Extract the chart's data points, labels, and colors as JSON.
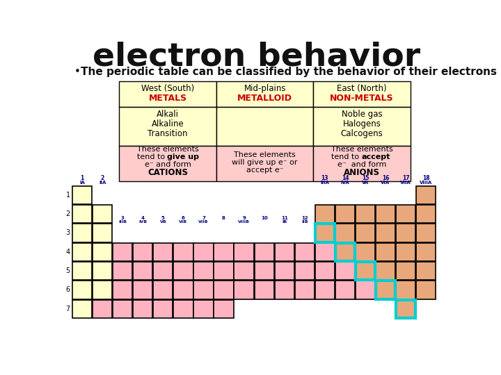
{
  "title": "electron behavior",
  "subtitle": "The periodic table can be classified by the behavior of their electrons",
  "bg_color": "#ffffff",
  "title_fontsize": 34,
  "subtitle_fontsize": 11,
  "table_header_bg": "#ffffcc",
  "table_bottom_bg": "#ffcccc",
  "col1_header": [
    "West (South)",
    "METALS"
  ],
  "col2_header": [
    "Mid-plains",
    "METALLOID"
  ],
  "col3_header": [
    "East (North)",
    "NON-METALS"
  ],
  "col1_items": [
    "Alkali",
    "Alkaline",
    "Transition"
  ],
  "col3_items": [
    "Noble gas",
    "Halogens",
    "Calcogens"
  ],
  "col1_bottom_plain1": "These elements",
  "col1_bottom_plain2": "tend to ",
  "col1_bottom_bold2": "give up",
  "col1_bottom_plain3": "e⁻ and form",
  "col1_bottom_bold4": "CATIONS",
  "col2_bottom": [
    "These elements",
    "will give up e⁻ or",
    "accept e⁻"
  ],
  "col3_bottom_plain1": "These elements",
  "col3_bottom_plain2": "tend to ",
  "col3_bottom_bold2": "accept",
  "col3_bottom_plain3": "e⁻  and form",
  "col3_bottom_bold4": "ANIONS",
  "pt_yellow": "#ffffcc",
  "pt_pink": "#ffb3c1",
  "pt_orange": "#e8a87c",
  "pt_teal": "#00ced1",
  "period_labels": [
    "1",
    "2",
    "3",
    "4",
    "5",
    "6",
    "7"
  ],
  "group_main_nums": [
    "1",
    "2",
    "13",
    "14",
    "15",
    "16",
    "17",
    "18"
  ],
  "group_main_labels": [
    "IA",
    "IIA",
    "IIIA",
    "IVA",
    "VA",
    "VIA",
    "VIIA",
    "VIIIA"
  ],
  "group_main_cols": [
    1,
    2,
    13,
    14,
    15,
    16,
    17,
    18
  ],
  "group_b_cols": [
    3,
    4,
    5,
    6,
    7,
    8,
    9,
    10,
    11,
    12
  ],
  "group_b_nums": [
    "3",
    "4",
    "5",
    "6",
    "7",
    "8",
    "9",
    "10",
    "11",
    "12"
  ],
  "group_b_labels": [
    "IIIB",
    "IVB",
    "VB",
    "VIB",
    "VIIB",
    "",
    "VIIIB",
    "",
    "IB",
    "IIB"
  ]
}
